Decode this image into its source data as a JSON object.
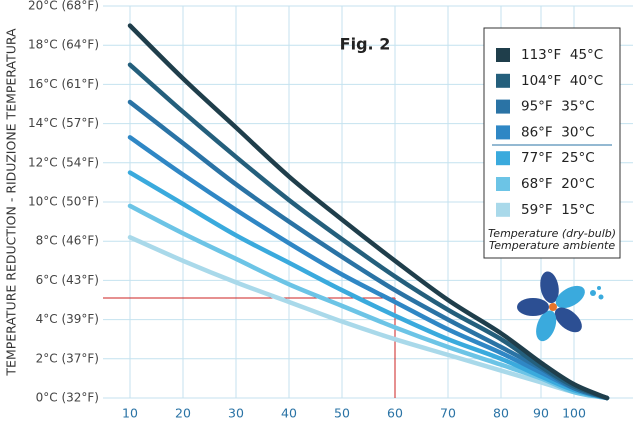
{
  "chart_data": {
    "type": "line",
    "title": "Fig. 2",
    "y_label": "TEMPERATURE REDUCTION - RIDUZIONE TEMPERATURA",
    "legend_title": [
      "Temperature (dry-bulb)",
      "Temperature ambiente"
    ],
    "x": [
      10,
      20,
      30,
      40,
      50,
      60,
      70,
      80,
      90,
      100,
      110
    ],
    "series": [
      {
        "name": "113°F  45°C",
        "color": "#1f3e4b",
        "values": [
          19.0,
          16.3,
          13.8,
          11.3,
          9.1,
          7.0,
          5.0,
          3.3,
          1.8,
          0.7,
          0
        ]
      },
      {
        "name": "104°F  40°C",
        "color": "#245f7c",
        "values": [
          17.0,
          14.6,
          12.3,
          10.1,
          8.1,
          6.2,
          4.5,
          3.0,
          1.6,
          0.6,
          0
        ]
      },
      {
        "name": "95°F  35°C",
        "color": "#2a73a5",
        "values": [
          15.1,
          13.0,
          10.9,
          9.0,
          7.2,
          5.5,
          4.0,
          2.6,
          1.5,
          0.5,
          0
        ]
      },
      {
        "name": "86°F  30°C",
        "color": "#2f87c5",
        "values": [
          13.3,
          11.4,
          9.6,
          7.9,
          6.3,
          4.9,
          3.5,
          2.3,
          1.3,
          0.5,
          0
        ]
      },
      {
        "name": "77°F  25°C",
        "color": "#3aaadd",
        "values": [
          11.5,
          9.9,
          8.3,
          6.9,
          5.5,
          4.2,
          3.0,
          2.0,
          1.1,
          0.4,
          0
        ]
      },
      {
        "name": "68°F  20°C",
        "color": "#6cc4e6",
        "values": [
          9.8,
          8.4,
          7.1,
          5.8,
          4.7,
          3.6,
          2.6,
          1.7,
          1.0,
          0.3,
          0
        ]
      },
      {
        "name": "59°F  15°C",
        "color": "#a9d9ea",
        "values": [
          8.2,
          7.0,
          5.9,
          4.9,
          3.9,
          3.0,
          2.2,
          1.4,
          0.8,
          0.3,
          0
        ]
      }
    ],
    "reference_point": {
      "x": 60,
      "y": 5.1,
      "color": "#cc2222"
    },
    "ylim": [
      0,
      20
    ],
    "yticks": [
      {
        "value": 0,
        "label": "0°C (32°F)"
      },
      {
        "value": 2,
        "label": "2°C (37°F)"
      },
      {
        "value": 4,
        "label": "4°C (39°F)"
      },
      {
        "value": 6,
        "label": "6°C (43°F)"
      },
      {
        "value": 8,
        "label": "8°C (46°F)"
      },
      {
        "value": 10,
        "label": "10°C (50°F)"
      },
      {
        "value": 12,
        "label": "12°C (54°F)"
      },
      {
        "value": 14,
        "label": "14°C (57°F)"
      },
      {
        "value": 16,
        "label": "16°C (61°F)"
      },
      {
        "value": 18,
        "label": "18°C (64°F)"
      },
      {
        "value": 20,
        "label": "20°C (68°F)"
      }
    ],
    "xticks": [
      10,
      20,
      30,
      40,
      50,
      60,
      70,
      80,
      90,
      100
    ],
    "grid": true
  }
}
